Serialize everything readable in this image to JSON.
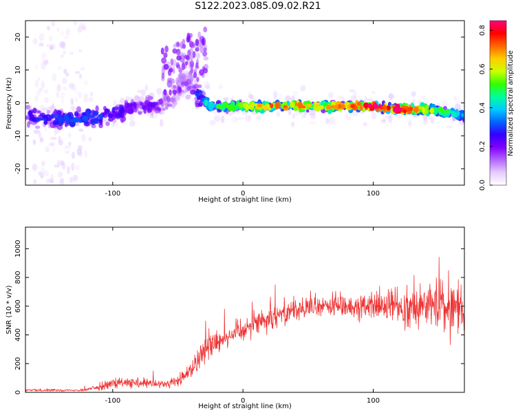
{
  "figure_title": "S122.2023.085.09.02.R21",
  "chart_data": [
    {
      "type": "heatmap",
      "title": "S122.2023.085.09.02.R21",
      "xlabel": "Height of straight line (km)",
      "ylabel": "Frequency (Hz)",
      "xlim": [
        -167,
        170
      ],
      "ylim": [
        -25,
        25
      ],
      "x_ticks": [
        -100,
        0,
        100
      ],
      "y_ticks": [
        -20,
        -10,
        0,
        10,
        20
      ],
      "colorbar": {
        "label": "Normalized spectral amplitude",
        "range": [
          0,
          0.85
        ],
        "ticks": [
          "0.0",
          "0.2",
          "0.4",
          "0.6",
          "0.8"
        ],
        "colormap": [
          "#ffffff",
          "#e6ccff",
          "#b366ff",
          "#7f00ff",
          "#3300ff",
          "#0066ff",
          "#00ccff",
          "#00ff99",
          "#33ff00",
          "#ccff00",
          "#ffcc00",
          "#ff6600",
          "#ff0000",
          "#ff0080"
        ]
      },
      "ridge": {
        "x": [
          -167,
          -150,
          -130,
          -110,
          -95,
          -80,
          -65,
          -55,
          -48,
          -42,
          -35,
          -30,
          -25,
          -15,
          0,
          20,
          40,
          60,
          80,
          100,
          120,
          140,
          160,
          170
        ],
        "frequency": [
          -4,
          -5,
          -5,
          -4,
          -3,
          -1,
          -1,
          1,
          5,
          6,
          3,
          1,
          -1,
          -1,
          -1,
          -1,
          -1,
          -1,
          -1,
          -1,
          -2,
          -2,
          -3,
          -4
        ],
        "peak_amplitude": [
          0.25,
          0.3,
          0.3,
          0.3,
          0.25,
          0.2,
          0.2,
          0.15,
          0.15,
          0.15,
          0.3,
          0.4,
          0.45,
          0.5,
          0.55,
          0.7,
          0.7,
          0.65,
          0.7,
          0.8,
          0.85,
          0.6,
          0.45,
          0.35
        ]
      }
    },
    {
      "type": "line",
      "xlabel": "Height of straight line (km)",
      "ylabel": "SNR (10 * v/v)",
      "xlim": [
        -167,
        170
      ],
      "ylim": [
        0,
        1150
      ],
      "x_ticks": [
        -100,
        0,
        100
      ],
      "y_ticks": [
        0,
        200,
        400,
        600,
        800,
        1000
      ],
      "color": "#ee3333",
      "series": [
        {
          "name": "SNR",
          "x": [
            -167,
            -150,
            -130,
            -120,
            -110,
            -100,
            -90,
            -80,
            -70,
            -60,
            -50,
            -45,
            -40,
            -35,
            -30,
            -25,
            -20,
            -10,
            0,
            10,
            20,
            30,
            40,
            50,
            60,
            80,
            100,
            120,
            140,
            160,
            170
          ],
          "y_mean": [
            15,
            15,
            15,
            18,
            40,
            60,
            65,
            60,
            60,
            55,
            80,
            110,
            160,
            230,
            290,
            330,
            360,
            400,
            440,
            490,
            520,
            560,
            580,
            580,
            600,
            600,
            600,
            600,
            600,
            590,
            580
          ],
          "y_spread": [
            10,
            10,
            8,
            15,
            30,
            50,
            50,
            45,
            45,
            40,
            60,
            80,
            100,
            110,
            120,
            120,
            120,
            110,
            110,
            110,
            110,
            110,
            110,
            100,
            100,
            110,
            130,
            160,
            200,
            250,
            250
          ]
        }
      ]
    }
  ]
}
